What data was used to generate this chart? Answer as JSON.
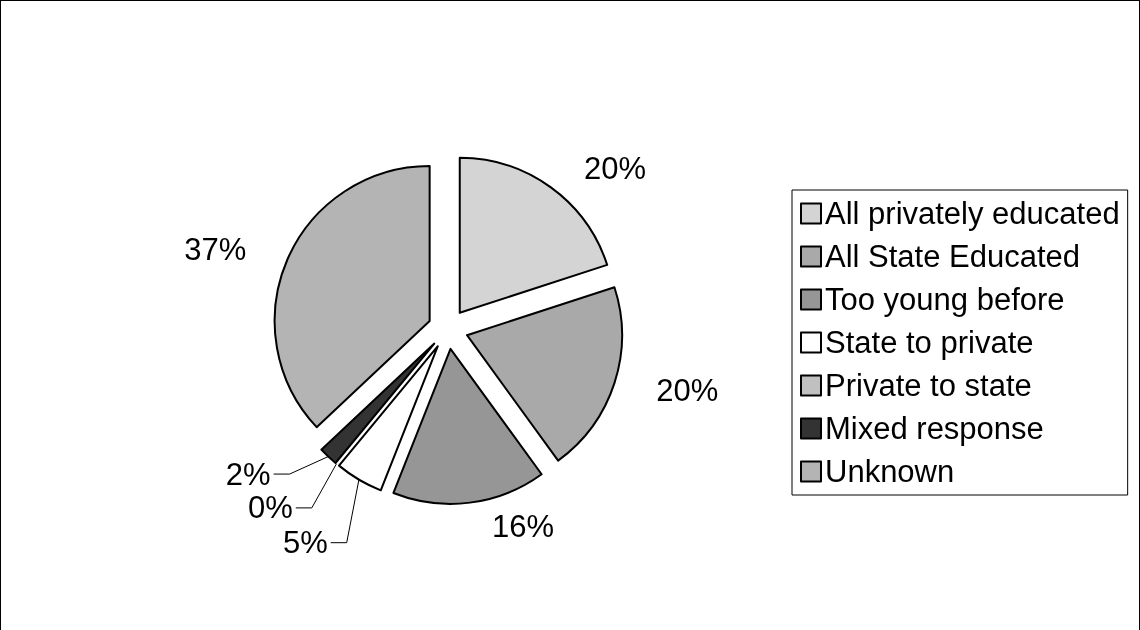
{
  "chart_data": {
    "type": "pie",
    "categories": [
      "All privately educated",
      "All State Educated",
      "Too young before",
      "State to private",
      "Private to state",
      "Mixed response",
      "Unknown"
    ],
    "values": [
      20,
      20,
      16,
      5,
      0,
      2,
      37
    ],
    "value_labels": [
      "20%",
      "20%",
      "16%",
      "5%",
      "0%",
      "2%",
      "37%"
    ],
    "colors": [
      "#d4d4d4",
      "#a9a9a9",
      "#969696",
      "#ffffff",
      "#c0c0c0",
      "#333333",
      "#b4b4b4"
    ],
    "legend": "right"
  }
}
